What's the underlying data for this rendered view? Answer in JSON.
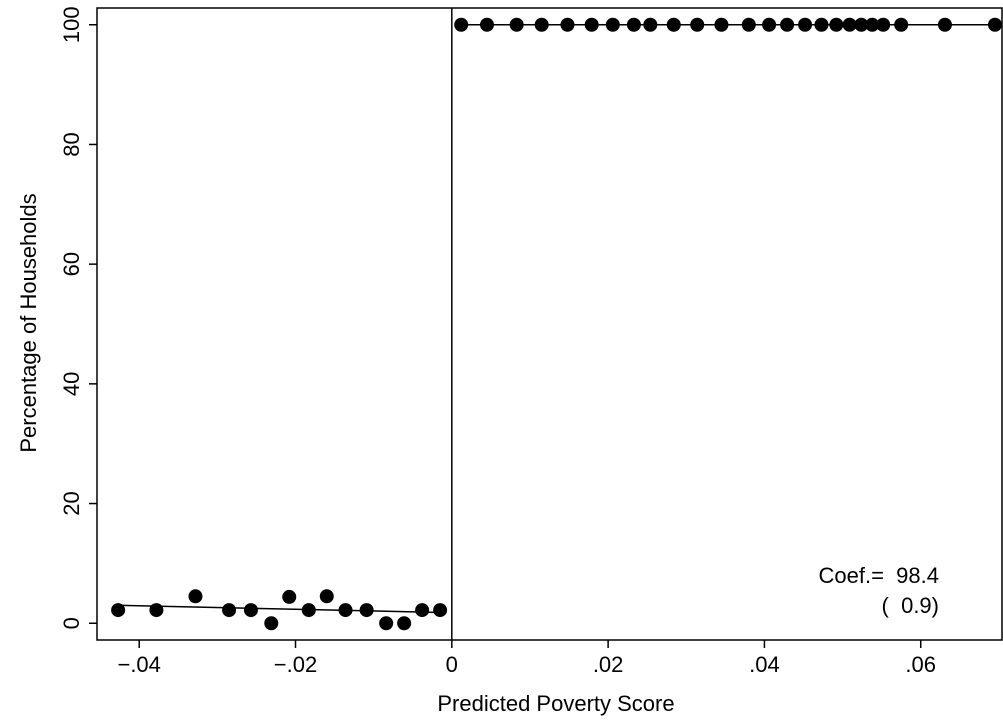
{
  "chart_data": {
    "type": "scatter",
    "xlabel": "Predicted Poverty Score",
    "ylabel": "Percentage of Households",
    "xlim": [
      -0.0454,
      0.0704
    ],
    "ylim": [
      -2.8,
      102.8
    ],
    "xticks": [
      {
        "value": -0.04,
        "label": "−.04"
      },
      {
        "value": -0.02,
        "label": "−.02"
      },
      0,
      {
        "value": 0.02,
        "label": ".02"
      },
      {
        "value": 0.04,
        "label": ".04"
      },
      {
        "value": 0.06,
        "label": ".06"
      }
    ],
    "yticks": [
      0,
      20,
      40,
      60,
      80,
      100
    ],
    "cutoff": 0,
    "color": "#000000",
    "series": [
      {
        "mode": "markers",
        "x": [
          -0.0427,
          -0.0378,
          -0.0328,
          -0.0285,
          -0.0257,
          -0.0231,
          -0.0208,
          -0.0183,
          -0.016,
          -0.0136,
          -0.0109,
          -0.0084,
          -0.0061,
          -0.0038,
          -0.0015
        ],
        "values": [
          2.2,
          2.2,
          4.5,
          2.2,
          2.2,
          0,
          4.4,
          2.2,
          4.5,
          2.2,
          2.2,
          0,
          0,
          2.2,
          2.2
        ]
      },
      {
        "mode": "markers",
        "x": [
          0.0012,
          0.0045,
          0.0083,
          0.0115,
          0.0148,
          0.0179,
          0.0206,
          0.0233,
          0.0254,
          0.0284,
          0.0314,
          0.0345,
          0.038,
          0.0406,
          0.0429,
          0.0452,
          0.0473,
          0.0492,
          0.0509,
          0.0524,
          0.0538,
          0.0552,
          0.0575,
          0.0631,
          0.0695
        ],
        "values": [
          100,
          100,
          100,
          100,
          100,
          100,
          100,
          100,
          100,
          100,
          100,
          100,
          100,
          100,
          100,
          100,
          100,
          100,
          100,
          100,
          100,
          100,
          100,
          100,
          100
        ]
      },
      {
        "mode": "line",
        "x": [
          -0.0427,
          -0.0015
        ],
        "values": [
          3.0,
          1.8
        ]
      },
      {
        "mode": "line",
        "x": [
          0.0012,
          0.0704
        ],
        "values": [
          100,
          100
        ]
      }
    ],
    "annotations": [
      "Coef.=  98.4",
      "(  0.9)"
    ]
  }
}
